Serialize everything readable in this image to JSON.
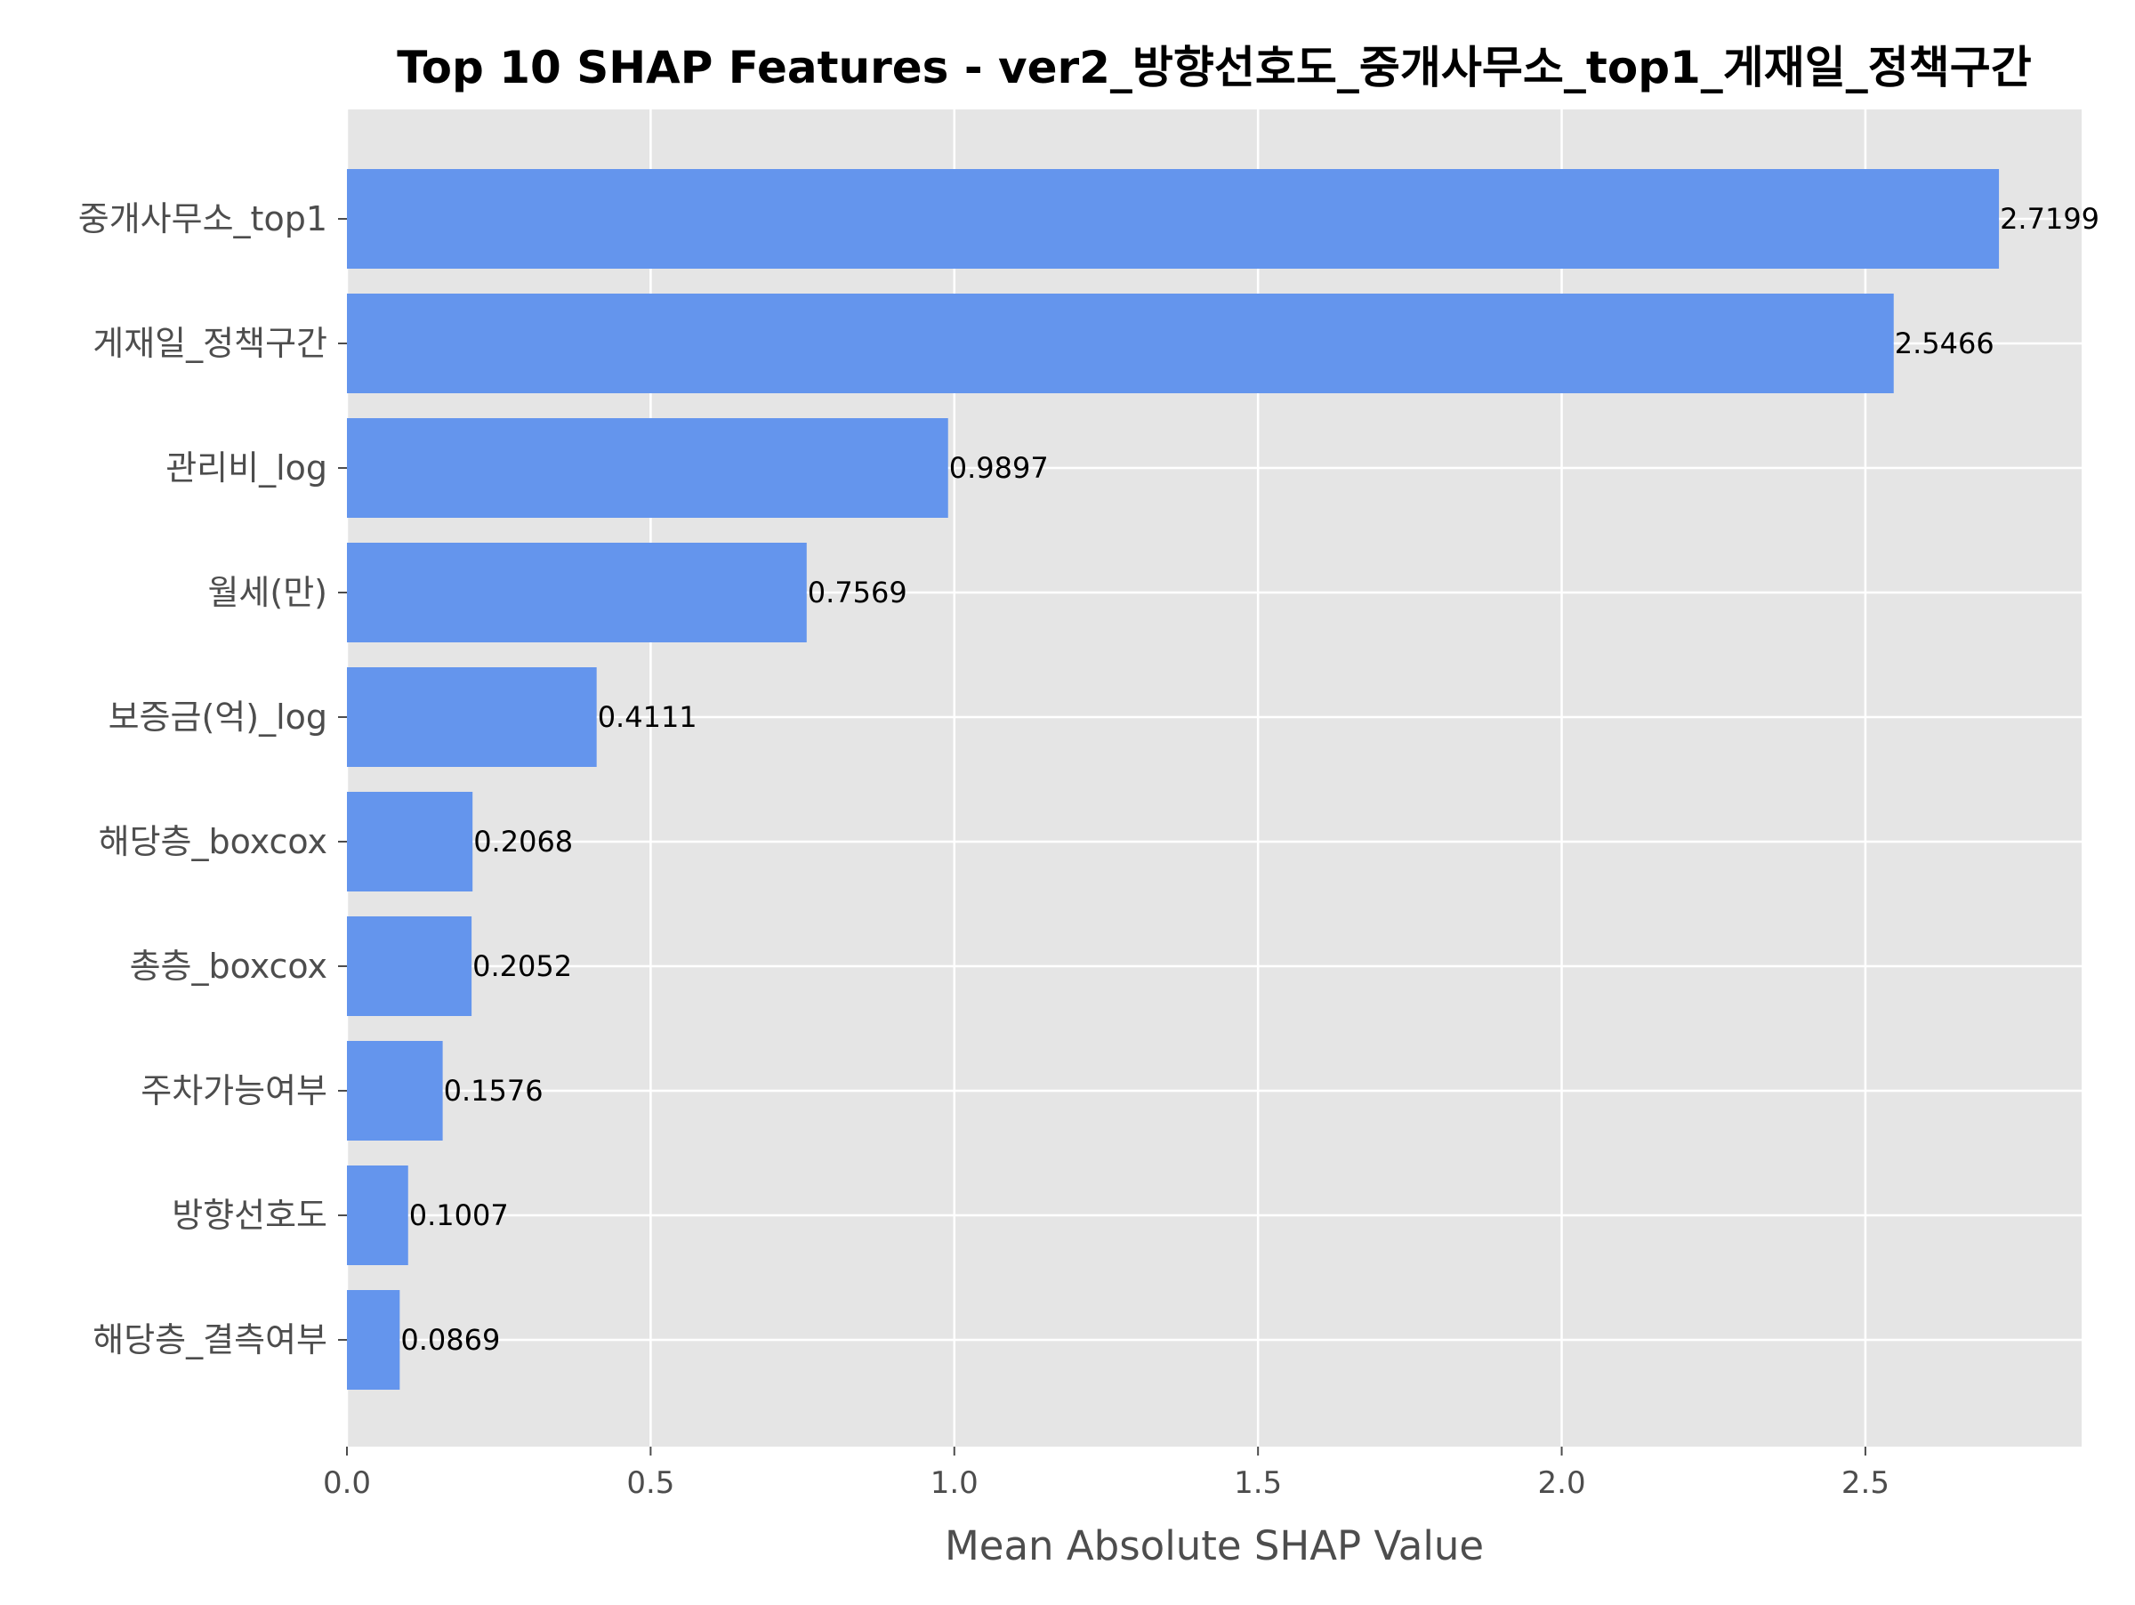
{
  "chart_data": {
    "type": "bar",
    "orientation": "horizontal",
    "title": "Top 10 SHAP Features - ver2_방향선호도_중개사무소_top1_게재일_정책구간",
    "xlabel": "Mean Absolute SHAP Value",
    "ylabel": "",
    "xlim": [
      0,
      2.856
    ],
    "xticks": [
      "0.0",
      "0.5",
      "1.0",
      "1.5",
      "2.0",
      "2.5"
    ],
    "categories": [
      "중개사무소_top1",
      "게재일_정책구간",
      "관리비_log",
      "월세(만)",
      "보증금(억)_log",
      "해당층_boxcox",
      "총층_boxcox",
      "주차가능여부",
      "방향선호도",
      "해당층_결측여부"
    ],
    "values": [
      2.7199,
      2.5466,
      0.9897,
      0.7569,
      0.4111,
      0.2068,
      0.2052,
      0.1576,
      0.1007,
      0.0869
    ],
    "value_labels": [
      "2.7199",
      "2.5466",
      "0.9897",
      "0.7569",
      "0.4111",
      "0.2068",
      "0.2052",
      "0.1576",
      "0.1007",
      "0.0869"
    ],
    "bar_color": "#6495ED",
    "background_color": "#E5E5E5",
    "grid": true,
    "legend": "none"
  }
}
